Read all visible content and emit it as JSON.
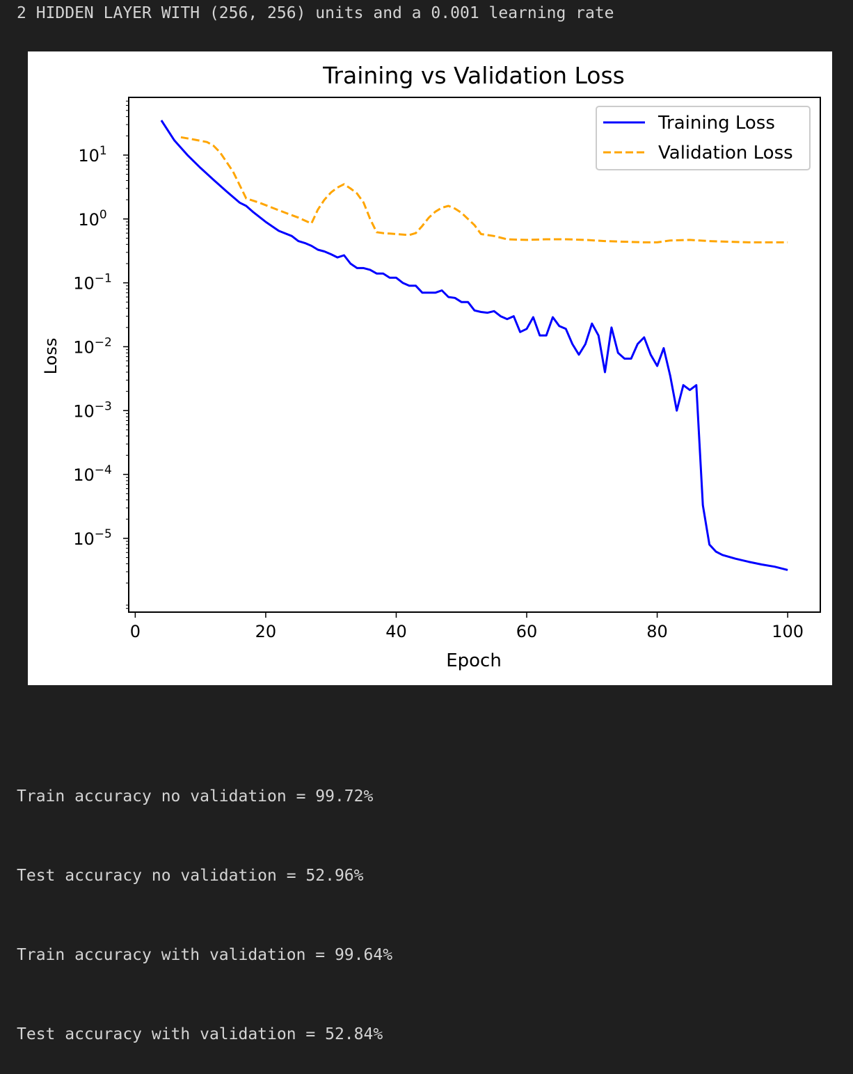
{
  "cell": {
    "header_text": "2 HIDDEN LAYER WITH (256, 256) units and a 0.001 learning rate",
    "output_lines": [
      "Train accuracy no validation = 99.72%",
      "Test accuracy no validation = 52.96%",
      "Train accuracy with validation = 99.64%",
      "Test accuracy with validation = 52.84%"
    ]
  },
  "chart_data": {
    "type": "line",
    "title": "Training vs Validation Loss",
    "xlabel": "Epoch",
    "ylabel": "Loss",
    "yscale": "log",
    "xlim": [
      -1,
      105
    ],
    "ylim": [
      7e-07,
      80
    ],
    "x_ticks": [
      0,
      20,
      40,
      60,
      80,
      100
    ],
    "y_ticks": [
      {
        "value": 1e-05,
        "base": "10",
        "exp": "−5"
      },
      {
        "value": 0.0001,
        "base": "10",
        "exp": "−4"
      },
      {
        "value": 0.001,
        "base": "10",
        "exp": "−3"
      },
      {
        "value": 0.01,
        "base": "10",
        "exp": "−2"
      },
      {
        "value": 0.1,
        "base": "10",
        "exp": "−1"
      },
      {
        "value": 1,
        "base": "10",
        "exp": "0"
      },
      {
        "value": 10,
        "base": "10",
        "exp": "1"
      }
    ],
    "grid": false,
    "legend_position": "top-right",
    "series": [
      {
        "name": "Training Loss",
        "color": "#0000ff",
        "style": "solid",
        "x": [
          4,
          6,
          8,
          10,
          12,
          14,
          16,
          17,
          18,
          20,
          22,
          24,
          25,
          26,
          27,
          28,
          29,
          30,
          31,
          32,
          33,
          34,
          35,
          36,
          37,
          38,
          39,
          40,
          41,
          42,
          43,
          44,
          45,
          46,
          47,
          48,
          49,
          50,
          51,
          52,
          53,
          54,
          55,
          56,
          57,
          58,
          59,
          60,
          61,
          62,
          63,
          64,
          65,
          66,
          67,
          68,
          69,
          70,
          71,
          72,
          73,
          74,
          75,
          76,
          77,
          78,
          79,
          80,
          81,
          82,
          83,
          84,
          85,
          86,
          87,
          88,
          89,
          90,
          92,
          94,
          96,
          98,
          100
        ],
        "y": [
          35,
          17,
          10,
          6.3,
          4.1,
          2.7,
          1.8,
          1.6,
          1.3,
          0.9,
          0.65,
          0.54,
          0.45,
          0.42,
          0.38,
          0.33,
          0.31,
          0.28,
          0.25,
          0.27,
          0.2,
          0.17,
          0.17,
          0.16,
          0.14,
          0.14,
          0.12,
          0.12,
          0.1,
          0.09,
          0.09,
          0.07,
          0.07,
          0.07,
          0.076,
          0.06,
          0.058,
          0.05,
          0.05,
          0.037,
          0.035,
          0.034,
          0.036,
          0.03,
          0.027,
          0.03,
          0.017,
          0.019,
          0.029,
          0.015,
          0.015,
          0.029,
          0.021,
          0.019,
          0.011,
          0.0075,
          0.011,
          0.023,
          0.015,
          0.004,
          0.02,
          0.008,
          0.0065,
          0.0065,
          0.011,
          0.014,
          0.0075,
          0.005,
          0.0095,
          0.0035,
          0.001,
          0.0025,
          0.0021,
          0.0025,
          3.3e-05,
          8e-06,
          6.2e-06,
          5.5e-06,
          4.8e-06,
          4.3e-06,
          3.9e-06,
          3.6e-06,
          3.2e-06
        ]
      },
      {
        "name": "Validation Loss",
        "color": "#ffa500",
        "style": "dashed",
        "x": [
          7,
          9,
          11,
          12,
          13,
          15,
          17,
          19,
          21,
          23,
          25,
          27,
          28,
          29,
          30,
          31,
          32,
          33,
          34,
          35,
          36,
          37,
          38,
          39,
          40,
          42,
          43,
          44,
          45,
          46,
          47,
          48,
          49,
          50,
          51,
          52,
          53,
          55,
          57,
          60,
          63,
          66,
          69,
          72,
          75,
          78,
          80,
          82,
          85,
          88,
          91,
          94,
          97,
          100
        ],
        "y": [
          19,
          17.5,
          16,
          14,
          11,
          5.5,
          2.1,
          1.8,
          1.5,
          1.25,
          1.05,
          0.85,
          1.4,
          2.0,
          2.6,
          3.1,
          3.5,
          3.0,
          2.5,
          1.8,
          1.0,
          0.62,
          0.6,
          0.59,
          0.58,
          0.56,
          0.6,
          0.78,
          1.05,
          1.3,
          1.5,
          1.6,
          1.45,
          1.25,
          1.0,
          0.8,
          0.58,
          0.54,
          0.48,
          0.47,
          0.48,
          0.48,
          0.47,
          0.45,
          0.44,
          0.43,
          0.43,
          0.46,
          0.47,
          0.45,
          0.44,
          0.43,
          0.43,
          0.43
        ]
      }
    ]
  }
}
